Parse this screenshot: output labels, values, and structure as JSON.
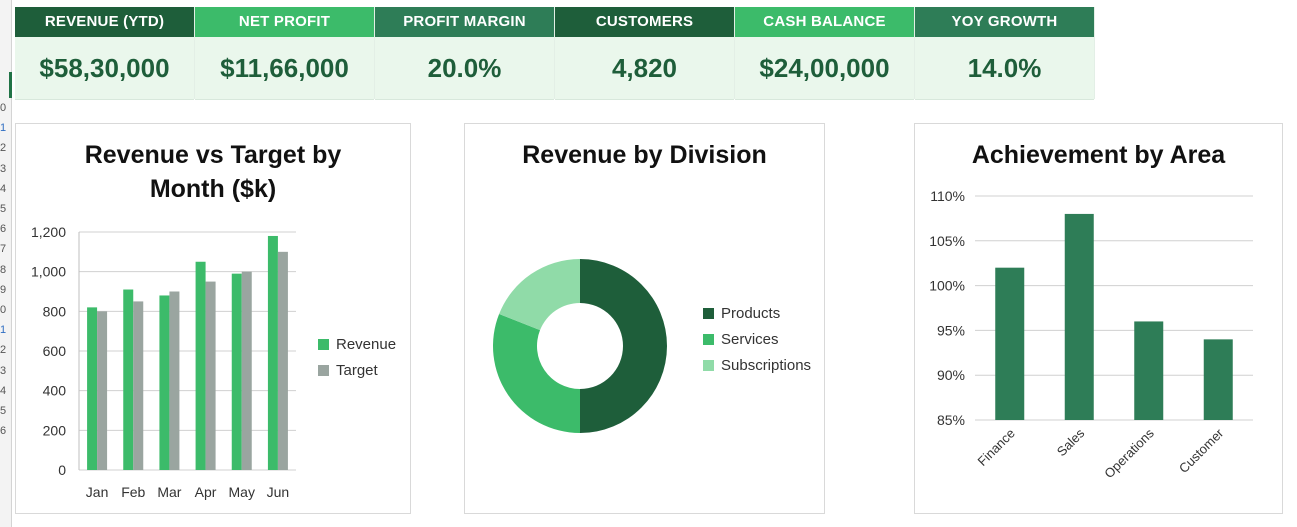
{
  "row_numbers": [
    "0",
    "1",
    "2",
    "3",
    "4",
    "5",
    "6",
    "7",
    "8",
    "9",
    "0",
    "1",
    "2",
    "3",
    "4",
    "5",
    "6"
  ],
  "kpis": [
    {
      "label": "REVENUE (YTD)",
      "value": "$58,30,000",
      "header_color": "#1e5e3a"
    },
    {
      "label": "NET PROFIT",
      "value": "$11,66,000",
      "header_color": "#3cbb6a"
    },
    {
      "label": "PROFIT MARGIN",
      "value": "20.0%",
      "header_color": "#2e7d57"
    },
    {
      "label": "CUSTOMERS",
      "value": "4,820",
      "header_color": "#1e5e3a"
    },
    {
      "label": "CASH BALANCE",
      "value": "$24,00,000",
      "header_color": "#3cbb6a"
    },
    {
      "label": "YOY GROWTH",
      "value": "14.0%",
      "header_color": "#2e7d57"
    }
  ],
  "charts": {
    "revenue_target": {
      "title": "Revenue vs Target by Month ($k)",
      "legend": [
        "Revenue",
        "Target"
      ]
    },
    "division": {
      "title": "Revenue by Division",
      "legend": [
        "Products",
        "Services",
        "Subscriptions"
      ]
    },
    "achievement": {
      "title": "Achievement by Area"
    }
  },
  "chart_data": [
    {
      "type": "bar",
      "title": "Revenue vs Target by Month ($k)",
      "categories": [
        "Jan",
        "Feb",
        "Mar",
        "Apr",
        "May",
        "Jun"
      ],
      "series": [
        {
          "name": "Revenue",
          "values": [
            820,
            910,
            880,
            1050,
            990,
            1180
          ],
          "color": "#3cbb6a"
        },
        {
          "name": "Target",
          "values": [
            800,
            850,
            900,
            950,
            1000,
            1100
          ],
          "color": "#9aa5a0"
        }
      ],
      "ylim": [
        0,
        1200
      ],
      "yticks": [
        "0",
        "200",
        "400",
        "600",
        "800",
        "1,000",
        "1,200"
      ],
      "grid": true,
      "legend_position": "right"
    },
    {
      "type": "pie",
      "donut": true,
      "title": "Revenue by Division",
      "categories": [
        "Products",
        "Services",
        "Subscriptions"
      ],
      "values": [
        50,
        31,
        19
      ],
      "colors": [
        "#1e5e3a",
        "#3cbb6a",
        "#90dba8"
      ],
      "legend_position": "right"
    },
    {
      "type": "bar",
      "title": "Achievement by Area",
      "categories": [
        "Finance",
        "Sales",
        "Operations",
        "Customer"
      ],
      "values": [
        102,
        108,
        96,
        94
      ],
      "color": "#2e7d57",
      "ylim": [
        85,
        110
      ],
      "yticks": [
        "85%",
        "90%",
        "95%",
        "100%",
        "105%",
        "110%"
      ],
      "grid": true
    }
  ]
}
